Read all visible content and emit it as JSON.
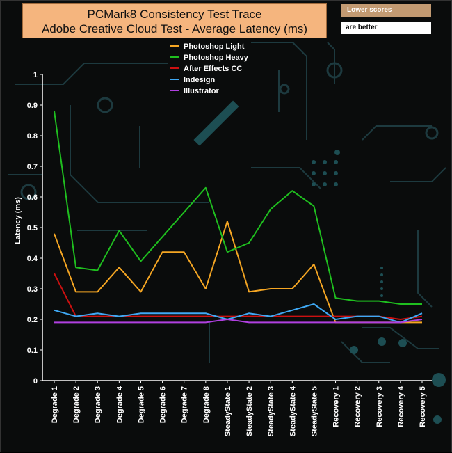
{
  "title": {
    "line1": "PCMark8 Consistency Test Trace",
    "line2": "Adobe Creative Cloud Test -  Average Latency (ms)"
  },
  "notes": {
    "lower": "Lower scores",
    "better": "are better"
  },
  "colors": {
    "background": "#0a0c0c",
    "circuit": "#1d3a3f",
    "title_box": "#f5b57e"
  },
  "chart_data": {
    "type": "line",
    "ylabel": "Latency (ms)",
    "xlabel": "",
    "ylim": [
      0,
      1
    ],
    "yticks": [
      "0",
      "0.1",
      "0.2",
      "0.3",
      "0.4",
      "0.5",
      "0.6",
      "0.7",
      "0.8",
      "0.9",
      "1"
    ],
    "grid": false,
    "legend_position": "top-center",
    "categories": [
      "Degrade 1",
      "Degrade 2",
      "Degrade 3",
      "Degrade 4",
      "Degrade 5",
      "Degrade 6",
      "Degrade 7",
      "Degrade 8",
      "SteadyState 1",
      "SteadyState 2",
      "SteadyState 3",
      "SteadyState 4",
      "SteadyState 5",
      "Recovery 1",
      "Recovery 2",
      "Recovery 3",
      "Recovery 4",
      "Recovery 5"
    ],
    "series": [
      {
        "name": "Photoshop Light",
        "color": "#f5a623",
        "values": [
          0.48,
          0.29,
          0.29,
          0.37,
          0.29,
          0.42,
          0.42,
          0.3,
          0.52,
          0.29,
          0.3,
          0.3,
          0.38,
          0.19,
          0.19,
          0.19,
          0.19,
          0.19
        ]
      },
      {
        "name": " Photoshop Heavy",
        "color": "#1fbf1f",
        "values": [
          0.88,
          0.37,
          0.36,
          0.49,
          0.39,
          0.47,
          0.55,
          0.63,
          0.42,
          0.45,
          0.56,
          0.62,
          0.57,
          0.27,
          0.26,
          0.26,
          0.25,
          0.25
        ]
      },
      {
        "name": "After Effects CC",
        "color": "#cc1010",
        "values": [
          0.35,
          0.21,
          0.21,
          0.21,
          0.21,
          0.21,
          0.21,
          0.21,
          0.21,
          0.21,
          0.21,
          0.21,
          0.21,
          0.21,
          0.21,
          0.21,
          0.2,
          0.21
        ]
      },
      {
        "name": "Indesign",
        "color": "#3fa9f5",
        "values": [
          0.23,
          0.21,
          0.22,
          0.21,
          0.22,
          0.22,
          0.22,
          0.22,
          0.2,
          0.22,
          0.21,
          0.23,
          0.25,
          0.2,
          0.21,
          0.21,
          0.19,
          0.22
        ]
      },
      {
        "name": "Illustrator",
        "color": "#b040e0",
        "values": [
          0.19,
          0.19,
          0.19,
          0.19,
          0.19,
          0.19,
          0.19,
          0.19,
          0.2,
          0.19,
          0.19,
          0.19,
          0.19,
          0.19,
          0.19,
          0.19,
          0.19,
          0.2
        ]
      }
    ]
  }
}
